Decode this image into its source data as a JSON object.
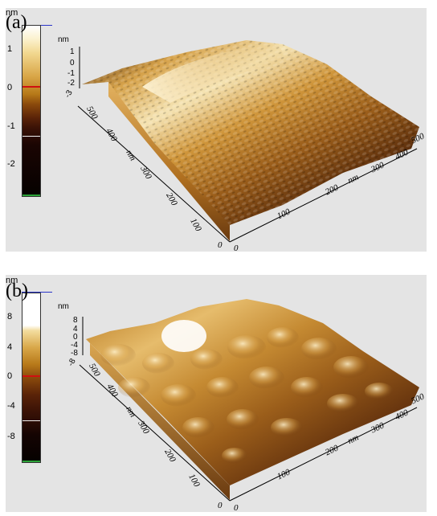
{
  "panels": [
    {
      "label": "(a)",
      "scale_unit": "nm",
      "scale_ticks": [
        "1",
        "0",
        "-1",
        "-2"
      ],
      "z_unit": "nm",
      "z_ticks": [
        "1",
        "0",
        "-1",
        "-2"
      ],
      "z_corner_label": "-3",
      "y_axis_unit": "nm",
      "y_axis_ticks": [
        "400",
        "300",
        "200",
        "100"
      ],
      "y_end_label": "500",
      "x_axis_unit": "nm",
      "x_axis_ticks": [
        "100",
        "200",
        "300",
        "400"
      ],
      "x_end_label": "500",
      "origin_labels": [
        "0",
        "0"
      ]
    },
    {
      "label": "(b)",
      "scale_unit": "nm",
      "scale_ticks": [
        "8",
        "4",
        "0",
        "-4",
        "-8"
      ],
      "z_unit": "nm",
      "z_ticks": [
        "8",
        "4",
        "0",
        "-4",
        "-8"
      ],
      "z_corner_label": "-8",
      "y_axis_unit": "nm",
      "y_axis_ticks": [
        "400",
        "300",
        "200",
        "100"
      ],
      "y_end_label": "500",
      "x_axis_unit": "nm",
      "x_axis_ticks": [
        "100",
        "200",
        "300",
        "400"
      ],
      "x_end_label": "500",
      "origin_labels": [
        "0",
        "0"
      ]
    }
  ],
  "colors": {
    "panel_background": "#e4e4e4",
    "scale_top_line": "#2a35c8",
    "scale_zero_marker": "#d01010",
    "scale_bottom_marker": "#2ba338"
  }
}
